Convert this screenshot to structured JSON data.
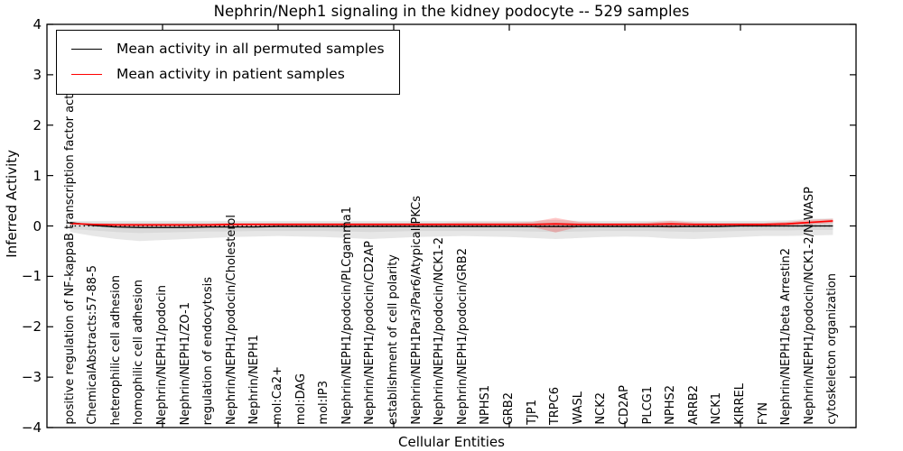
{
  "figure": {
    "title": "Nephrin/Neph1 signaling in the kidney podocyte -- 529 samples"
  },
  "chart_data": {
    "type": "line",
    "title": "Nephrin/Neph1 signaling in the kidney podocyte -- 529 samples",
    "xlabel": "Cellular Entities",
    "ylabel": "Inferred Activity",
    "ylim": [
      -4,
      4
    ],
    "yticks": [
      4,
      3,
      2,
      1,
      0,
      -1,
      -2,
      -3,
      -4
    ],
    "xticks_every": 5,
    "grid": false,
    "legend_position": "upper left",
    "categories": [
      "positive regulation of NF-kappaB transcription factor activity",
      "ChemicalAbstracts:57-88-5",
      "heterophilic cell adhesion",
      "homophilic cell adhesion",
      "Nephrin/NEPH1/podocin",
      "Nephrin/NEPH1/ZO-1",
      "regulation of endocytosis",
      "Nephrin/NEPH1/podocin/Cholesterol",
      "Nephrin/NEPH1",
      "mol:Ca2+",
      "mol:DAG",
      "mol:IP3",
      "Nephrin/NEPH1/podocin/PLCgamma1",
      "Nephrin/NEPH1/podocin/CD2AP",
      "establishment of cell polarity",
      "Nephrin/NEPH1Par3/Par6/Atypical PKCs",
      "Nephrin/NEPH1/podocin/NCK1-2",
      "Nephrin/NEPH1/podocin/GRB2",
      "NPHS1",
      "GRB2",
      "TJP1",
      "TRPC6",
      "WASL",
      "NCK2",
      "CD2AP",
      "PLCG1",
      "NPHS2",
      "ARRB2",
      "NCK1",
      "KIRREL",
      "FYN",
      "Nephrin/NEPH1/beta Arrestin2",
      "Nephrin/NEPH1/podocin/NCK1-2/N-WASP",
      "cytoskeleton organization"
    ],
    "series": [
      {
        "name": "Mean activity in all permuted samples",
        "color": "#000000",
        "values": [
          0.07,
          0.01,
          -0.02,
          -0.03,
          -0.03,
          -0.03,
          -0.02,
          -0.02,
          -0.02,
          -0.01,
          -0.01,
          -0.01,
          -0.01,
          -0.01,
          -0.01,
          -0.01,
          -0.01,
          -0.01,
          -0.01,
          -0.01,
          -0.01,
          -0.01,
          -0.01,
          -0.01,
          -0.01,
          -0.01,
          -0.01,
          -0.01,
          -0.01,
          0.0,
          0.0,
          0.0,
          0.0,
          0.0
        ]
      },
      {
        "name": "Mean activity in patient samples",
        "color": "#ff0000",
        "values": [
          0.05,
          0.03,
          0.02,
          0.02,
          0.02,
          0.02,
          0.02,
          0.03,
          0.03,
          0.03,
          0.03,
          0.03,
          0.03,
          0.03,
          0.03,
          0.03,
          0.03,
          0.03,
          0.03,
          0.03,
          0.03,
          0.04,
          0.03,
          0.03,
          0.03,
          0.03,
          0.04,
          0.03,
          0.03,
          0.03,
          0.03,
          0.04,
          0.07,
          0.1
        ]
      }
    ],
    "bands": [
      {
        "name": "permuted-range-outer",
        "color": "#e7e7e7",
        "opacity": 1,
        "top": [
          0.1,
          0.1,
          0.1,
          0.1,
          0.1,
          0.1,
          0.1,
          0.1,
          0.1,
          0.1,
          0.1,
          0.1,
          0.1,
          0.1,
          0.1,
          0.1,
          0.1,
          0.1,
          0.1,
          0.1,
          0.1,
          0.12,
          0.1,
          0.1,
          0.1,
          0.1,
          0.11,
          0.1,
          0.1,
          0.1,
          0.1,
          0.11,
          0.14,
          0.15
        ],
        "bottom": [
          -0.12,
          -0.2,
          -0.26,
          -0.3,
          -0.28,
          -0.26,
          -0.24,
          -0.22,
          -0.21,
          -0.2,
          -0.21,
          -0.22,
          -0.24,
          -0.26,
          -0.24,
          -0.22,
          -0.21,
          -0.2,
          -0.21,
          -0.22,
          -0.24,
          -0.26,
          -0.24,
          -0.22,
          -0.21,
          -0.22,
          -0.25,
          -0.26,
          -0.24,
          -0.22,
          -0.2,
          -0.2,
          -0.19,
          -0.18
        ]
      },
      {
        "name": "permuted-range-inner",
        "color": "#d8d8d8",
        "opacity": 0.95,
        "top": [
          0.08,
          0.07,
          0.06,
          0.06,
          0.06,
          0.06,
          0.06,
          0.06,
          0.06,
          0.06,
          0.06,
          0.06,
          0.06,
          0.06,
          0.06,
          0.06,
          0.06,
          0.06,
          0.06,
          0.06,
          0.06,
          0.07,
          0.06,
          0.06,
          0.06,
          0.06,
          0.06,
          0.06,
          0.06,
          0.06,
          0.06,
          0.07,
          0.08,
          0.09
        ],
        "bottom": [
          -0.06,
          -0.09,
          -0.12,
          -0.14,
          -0.13,
          -0.12,
          -0.11,
          -0.11,
          -0.1,
          -0.1,
          -0.1,
          -0.1,
          -0.11,
          -0.12,
          -0.11,
          -0.1,
          -0.1,
          -0.1,
          -0.1,
          -0.1,
          -0.11,
          -0.12,
          -0.11,
          -0.1,
          -0.1,
          -0.1,
          -0.11,
          -0.12,
          -0.11,
          -0.1,
          -0.09,
          -0.09,
          -0.08,
          -0.08
        ]
      },
      {
        "name": "patient-range",
        "color": "#ff0000",
        "opacity": 0.22,
        "top": [
          0.06,
          0.05,
          0.05,
          0.05,
          0.05,
          0.05,
          0.05,
          0.06,
          0.06,
          0.06,
          0.06,
          0.06,
          0.06,
          0.06,
          0.06,
          0.06,
          0.06,
          0.07,
          0.07,
          0.07,
          0.08,
          0.16,
          0.08,
          0.06,
          0.06,
          0.07,
          0.1,
          0.07,
          0.06,
          0.06,
          0.06,
          0.08,
          0.12,
          0.14
        ],
        "bottom": [
          0.03,
          0.01,
          0.0,
          0.0,
          0.0,
          0.0,
          0.0,
          0.0,
          0.0,
          0.0,
          0.0,
          0.0,
          0.0,
          0.0,
          0.0,
          0.0,
          0.0,
          -0.01,
          -0.01,
          -0.01,
          -0.02,
          -0.13,
          -0.02,
          0.0,
          0.0,
          -0.01,
          -0.04,
          -0.01,
          0.0,
          0.0,
          0.0,
          0.01,
          0.03,
          0.06
        ]
      }
    ],
    "zero_line": {
      "y": 0,
      "style": "dotted",
      "color": "#000000"
    }
  },
  "legend": {
    "entries": [
      {
        "label": "Mean activity in all permuted samples",
        "color": "#000000"
      },
      {
        "label": "Mean activity in patient samples",
        "color": "#ff0000"
      }
    ]
  }
}
